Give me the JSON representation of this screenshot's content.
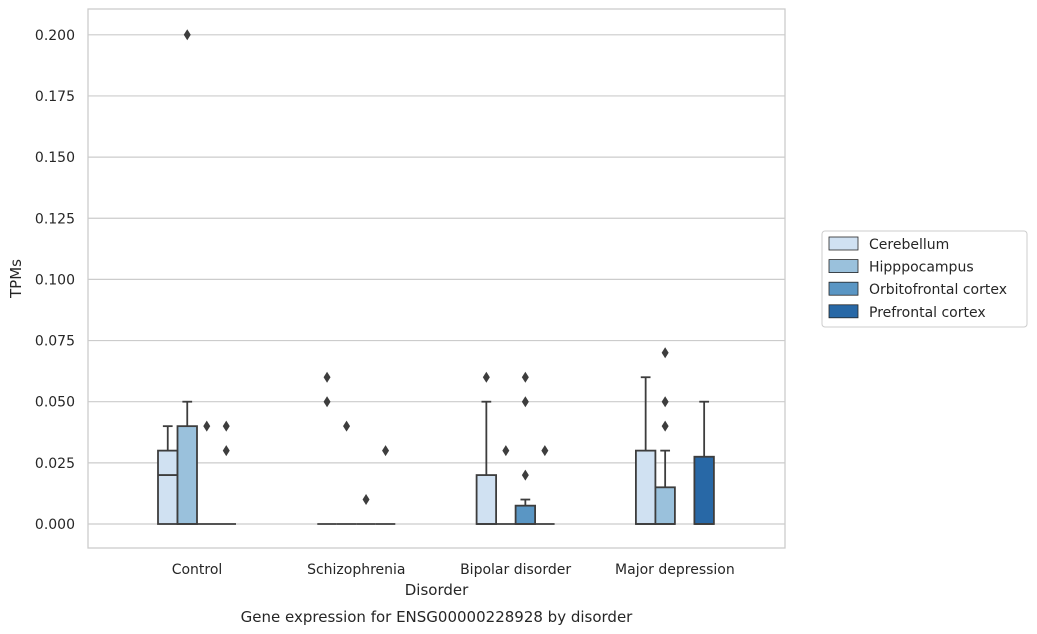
{
  "chart_data": {
    "type": "box",
    "caption": "Gene expression for ENSG00000228928 by disorder",
    "xlabel": "Disorder",
    "ylabel": "TPMs",
    "ylim": [
      -0.01,
      0.21
    ],
    "yticks": [
      "0.000",
      "0.025",
      "0.050",
      "0.075",
      "0.100",
      "0.125",
      "0.150",
      "0.175",
      "0.200"
    ],
    "grid": "horizontal",
    "legend_placement": "right",
    "categories": [
      "Control",
      "Schizophrenia",
      "Bipolar disorder",
      "Major depression"
    ],
    "series": [
      {
        "name": "Cerebellum",
        "color": "#d0e1f2",
        "boxes": [
          {
            "q1": 0.0,
            "median": 0.02,
            "q3": 0.03,
            "whisker_low": 0.0,
            "whisker_high": 0.04,
            "outliers": []
          },
          {
            "q1": 0.0,
            "median": 0.0,
            "q3": 0.0,
            "whisker_low": 0.0,
            "whisker_high": 0.0,
            "outliers": [
              0.06,
              0.05
            ]
          },
          {
            "q1": 0.0,
            "median": 0.0,
            "q3": 0.02,
            "whisker_low": 0.0,
            "whisker_high": 0.05,
            "outliers": [
              0.06
            ]
          },
          {
            "q1": 0.0,
            "median": 0.0,
            "q3": 0.03,
            "whisker_low": 0.0,
            "whisker_high": 0.06,
            "outliers": []
          }
        ]
      },
      {
        "name": "Hipppocampus",
        "color": "#9ac1dc",
        "boxes": [
          {
            "q1": 0.0,
            "median": 0.0,
            "q3": 0.04,
            "whisker_low": 0.0,
            "whisker_high": 0.05,
            "outliers": [
              0.2
            ]
          },
          {
            "q1": 0.0,
            "median": 0.0,
            "q3": 0.0,
            "whisker_low": 0.0,
            "whisker_high": 0.0,
            "outliers": [
              0.04
            ]
          },
          {
            "q1": 0.0,
            "median": 0.0,
            "q3": 0.0,
            "whisker_low": 0.0,
            "whisker_high": 0.0,
            "outliers": [
              0.03
            ]
          },
          {
            "q1": 0.0,
            "median": 0.0,
            "q3": 0.015,
            "whisker_low": 0.0,
            "whisker_high": 0.03,
            "outliers": [
              0.07,
              0.05,
              0.04
            ]
          }
        ]
      },
      {
        "name": "Orbitofrontal cortex",
        "color": "#5a96c4",
        "boxes": [
          {
            "q1": 0.0,
            "median": 0.0,
            "q3": 0.0,
            "whisker_low": 0.0,
            "whisker_high": 0.0,
            "outliers": [
              0.04
            ]
          },
          {
            "q1": 0.0,
            "median": 0.0,
            "q3": 0.0,
            "whisker_low": 0.0,
            "whisker_high": 0.0,
            "outliers": [
              0.01
            ]
          },
          {
            "q1": 0.0,
            "median": 0.0,
            "q3": 0.0075,
            "whisker_low": 0.0,
            "whisker_high": 0.01,
            "outliers": [
              0.06,
              0.05,
              0.02
            ]
          },
          null
        ]
      },
      {
        "name": "Prefrontal cortex",
        "color": "#2868a6",
        "boxes": [
          {
            "q1": 0.0,
            "median": 0.0,
            "q3": 0.0,
            "whisker_low": 0.0,
            "whisker_high": 0.0,
            "outliers": [
              0.04,
              0.03
            ]
          },
          {
            "q1": 0.0,
            "median": 0.0,
            "q3": 0.0,
            "whisker_low": 0.0,
            "whisker_high": 0.0,
            "outliers": [
              0.03
            ]
          },
          {
            "q1": 0.0,
            "median": 0.0,
            "q3": 0.0,
            "whisker_low": 0.0,
            "whisker_high": 0.0,
            "outliers": [
              0.03
            ]
          },
          {
            "q1": 0.0,
            "median": 0.0,
            "q3": 0.0275,
            "whisker_low": 0.0,
            "whisker_high": 0.05,
            "outliers": []
          }
        ]
      }
    ]
  }
}
